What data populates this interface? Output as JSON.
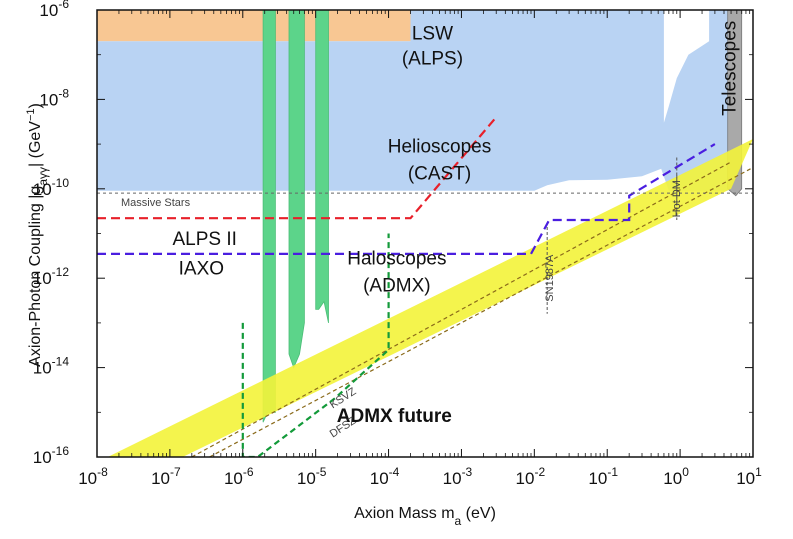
{
  "chart_data": {
    "type": "area",
    "title": "",
    "xlabel": "Axion Mass m",
    "xlabel_sub": "a",
    "xlabel_unit": " (eV)",
    "ylabel": "Axion-Photon Coupling |g",
    "ylabel_sub": "aγγ",
    "ylabel_unit": "| (GeV",
    "ylabel_unit_sup": "−1",
    "ylabel_close": ")",
    "x_scale": "log",
    "y_scale": "log",
    "xlim": [
      1e-08,
      10
    ],
    "ylim": [
      1e-16,
      1e-06
    ],
    "x_ticks": [
      {
        "value": 1e-08,
        "base": "10",
        "exp": "-8"
      },
      {
        "value": 1e-07,
        "base": "10",
        "exp": "-7"
      },
      {
        "value": 1e-06,
        "base": "10",
        "exp": "-6"
      },
      {
        "value": 1e-05,
        "base": "10",
        "exp": "-5"
      },
      {
        "value": 0.0001,
        "base": "10",
        "exp": "-4"
      },
      {
        "value": 0.001,
        "base": "10",
        "exp": "-3"
      },
      {
        "value": 0.01,
        "base": "10",
        "exp": "-2"
      },
      {
        "value": 0.1,
        "base": "10",
        "exp": "-1"
      },
      {
        "value": 1,
        "base": "10",
        "exp": "0"
      },
      {
        "value": 10,
        "base": "10",
        "exp": "1"
      }
    ],
    "y_ticks": [
      {
        "value": 1e-06,
        "base": "10",
        "exp": "-6"
      },
      {
        "value": 1e-08,
        "base": "10",
        "exp": "-8"
      },
      {
        "value": 1e-10,
        "base": "10",
        "exp": "-10"
      },
      {
        "value": 1e-12,
        "base": "10",
        "exp": "-12"
      },
      {
        "value": 1e-14,
        "base": "10",
        "exp": "-14"
      },
      {
        "value": 1e-16,
        "base": "10",
        "exp": "-16"
      }
    ],
    "colors": {
      "lsw": "#f8c793",
      "helioscope": "#b9d3f3",
      "haloscope": "#5cd48a",
      "band": "#f3f33a",
      "telescope": "#a9a9a9",
      "alps2": "#e8202a",
      "iaxo": "#4a1ee0",
      "admx_future": "#139a3a",
      "sn": "#555555",
      "massive": "#666666",
      "model": "#8a6a1a"
    },
    "regions": [
      {
        "name": "LSW",
        "points": [
          [
            1e-08,
            1e-06
          ],
          [
            0.0002,
            1e-06
          ],
          [
            0.0002,
            2e-07
          ],
          [
            1e-08,
            2e-07
          ]
        ]
      },
      {
        "name": "Helioscopes",
        "points": [
          [
            1e-08,
            2e-07
          ],
          [
            0.0002,
            2e-07
          ],
          [
            0.0002,
            1e-06
          ],
          [
            0.002,
            1e-06
          ],
          [
            0.02,
            1e-06
          ],
          [
            0.25,
            1e-06
          ],
          [
            0.6,
            1e-06
          ],
          [
            0.6,
            3e-09
          ],
          [
            0.7,
            7e-09
          ],
          [
            0.9,
            3e-08
          ],
          [
            1.3,
            1e-07
          ],
          [
            2.5,
            2e-07
          ],
          [
            2.5,
            1e-06
          ],
          [
            4.5,
            1e-06
          ],
          [
            4.5,
            9e-11
          ],
          [
            0.7,
            9e-11
          ],
          [
            0.55,
            2.8e-10
          ],
          [
            0.3,
            1.9e-10
          ],
          [
            0.1,
            1.6e-10
          ],
          [
            0.03,
            1.55e-10
          ],
          [
            0.015,
            1.2e-10
          ],
          [
            0.01,
            9e-11
          ],
          [
            1e-08,
            9e-11
          ]
        ]
      },
      {
        "name": "Haloscope band 1",
        "points": [
          [
            1.9e-06,
            1e-06
          ],
          [
            2.8e-06,
            1e-06
          ],
          [
            2.8e-06,
            1e-15
          ],
          [
            2.2e-06,
            1e-15
          ],
          [
            1.9e-06,
            6e-16
          ]
        ]
      },
      {
        "name": "Haloscope band 2",
        "points": [
          [
            4.3e-06,
            1e-06
          ],
          [
            7e-06,
            1e-06
          ],
          [
            7e-06,
            1e-13
          ],
          [
            6e-06,
            2e-14
          ],
          [
            5e-06,
            1e-14
          ],
          [
            4.3e-06,
            2e-14
          ]
        ]
      },
      {
        "name": "Haloscope band 3",
        "points": [
          [
            1e-05,
            1e-06
          ],
          [
            1.5e-05,
            1e-06
          ],
          [
            1.5e-05,
            1e-13
          ],
          [
            1.3e-05,
            3e-13
          ],
          [
            1.1e-05,
            2e-13
          ],
          [
            1e-05,
            2e-13
          ]
        ]
      },
      {
        "name": "Telescopes",
        "points": [
          [
            4.5,
            1e-06
          ],
          [
            7,
            1e-06
          ],
          [
            7,
            1e-10
          ],
          [
            5.8,
            7e-11
          ],
          [
            4.5,
            1e-10
          ]
        ]
      }
    ],
    "band": {
      "name": "QCD axion band",
      "lower": [
        [
          1.5e-07,
          1e-16
        ],
        [
          5,
          1e-10
        ]
      ],
      "upper": [
        [
          1.4e-08,
          1e-16
        ],
        [
          10,
          1.3e-09
        ]
      ]
    },
    "lines": [
      {
        "name": "KSVZ",
        "points": [
          [
            2e-07,
            1e-16
          ],
          [
            5,
            4e-10
          ]
        ]
      },
      {
        "name": "DFSZ",
        "points": [
          [
            3.5e-07,
            1e-16
          ],
          [
            10,
            3e-10
          ]
        ]
      },
      {
        "name": "ALPS II",
        "points": [
          [
            1e-08,
            2.2e-11
          ],
          [
            0.0002,
            2.2e-11
          ],
          [
            0.003,
            4e-09
          ]
        ]
      },
      {
        "name": "IAXO",
        "points": [
          [
            1e-08,
            3.5e-12
          ],
          [
            0.009,
            3.5e-12
          ],
          [
            0.016,
            2e-11
          ],
          [
            0.2,
            2e-11
          ],
          [
            0.2,
            7e-11
          ],
          [
            3,
            1e-09
          ]
        ]
      },
      {
        "name": "ADMX future",
        "points": [
          [
            1e-06,
            1e-13
          ],
          [
            1e-06,
            1e-16
          ],
          [
            1.6e-06,
            1e-16
          ],
          [
            1.8e-05,
            2e-15
          ],
          [
            0.0001,
            2.5e-14
          ],
          [
            0.0001,
            1e-11
          ]
        ]
      },
      {
        "name": "Massive Stars",
        "points": [
          [
            1e-08,
            8e-11
          ],
          [
            10,
            8e-11
          ]
        ]
      },
      {
        "name": "SN1987A",
        "points": [
          [
            0.015,
            1.3e-12
          ],
          [
            0.015,
            1e-12
          ]
        ]
      },
      {
        "name": "Hot DM",
        "points": [
          [
            0.9,
            2e-10
          ],
          [
            0.9,
            5e-11
          ]
        ]
      }
    ],
    "annotations": [
      {
        "key": "lsw",
        "text": "LSW",
        "x": 0.0004,
        "y": 2.2e-07
      },
      {
        "key": "alps",
        "text": "(ALPS)",
        "x": 0.0004,
        "y": 6e-08
      },
      {
        "key": "helio",
        "text": "Helioscopes",
        "x": 0.0005,
        "y": 6.5e-10
      },
      {
        "key": "cast",
        "text": "(CAST)",
        "x": 0.0005,
        "y": 1.6e-10
      },
      {
        "key": "halo",
        "text": "Haloscopes",
        "x": 0.00013,
        "y": 2e-12
      },
      {
        "key": "admx",
        "text": "(ADMX)",
        "x": 0.00013,
        "y": 5e-13
      },
      {
        "key": "alps2",
        "text": "ALPS II",
        "x": 3e-07,
        "y": 5.5e-12
      },
      {
        "key": "iaxo",
        "text": "IAXO",
        "x": 2.7e-07,
        "y": 1.2e-12
      },
      {
        "key": "admxf",
        "text": "ADMX future",
        "x": 0.00012,
        "y": 6e-16
      },
      {
        "key": "ksvz",
        "text": "KSVZ",
        "x": 2.5e-05,
        "y": 1.8e-15
      },
      {
        "key": "dfsz",
        "text": "DFSZ",
        "x": 2.5e-05,
        "y": 4e-16
      },
      {
        "key": "massive",
        "text": "Massive Stars",
        "x": 2.5e-07,
        "y": 8e-11
      },
      {
        "key": "sn",
        "text": "SN1987A",
        "x": 0.018,
        "y": 1e-12
      },
      {
        "key": "hotdm",
        "text": "Hot DM",
        "x": 1.0,
        "y": 6e-11
      },
      {
        "key": "telescopes",
        "text": "Telescopes",
        "x": 5.8,
        "y": 5e-08
      }
    ]
  }
}
